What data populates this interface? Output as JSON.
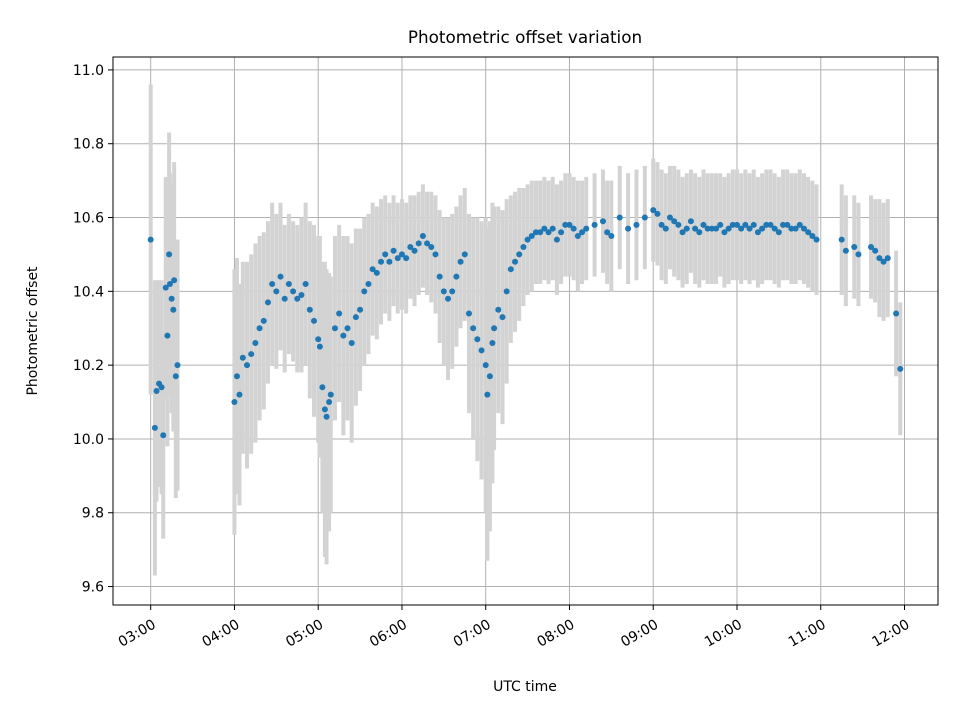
{
  "chart_data": {
    "type": "scatter",
    "title": "Photometric offset variation",
    "xlabel": "UTC time",
    "ylabel": "Photometric offset",
    "x_unit": "hours (UTC)",
    "xlim": [
      2.55,
      12.4
    ],
    "ylim": [
      9.55,
      11.035
    ],
    "x_ticks": [
      3,
      4,
      5,
      6,
      7,
      8,
      9,
      10,
      11,
      12
    ],
    "x_tick_labels": [
      "03:00",
      "04:00",
      "05:00",
      "06:00",
      "07:00",
      "08:00",
      "09:00",
      "10:00",
      "11:00",
      "12:00"
    ],
    "y_ticks": [
      9.6,
      9.8,
      10.0,
      10.2,
      10.4,
      10.6,
      10.8,
      11.0
    ],
    "y_tick_labels": [
      "9.6",
      "9.8",
      "10.0",
      "10.2",
      "10.4",
      "10.6",
      "10.8",
      "11.0"
    ],
    "grid": true,
    "legend": "none",
    "colors": {
      "points": "#1f77b4",
      "errorbars": "#d3d3d3",
      "grid": "#b0b0b0"
    },
    "series": [
      {
        "x": [
          3.0,
          3.05,
          3.07,
          3.1,
          3.13,
          3.15,
          3.18,
          3.2,
          3.22,
          3.23,
          3.25,
          3.27,
          3.28,
          3.3,
          3.32,
          4.0,
          4.03,
          4.06,
          4.1,
          4.15,
          4.2,
          4.25,
          4.3,
          4.35,
          4.4,
          4.45,
          4.5,
          4.55,
          4.6,
          4.65,
          4.7,
          4.75,
          4.8,
          4.85,
          4.9,
          4.95,
          5.0,
          5.02,
          5.05,
          5.08,
          5.1,
          5.13,
          5.15,
          5.2,
          5.25,
          5.3,
          5.35,
          5.4,
          5.45,
          5.5,
          5.55,
          5.6,
          5.65,
          5.7,
          5.75,
          5.8,
          5.85,
          5.9,
          5.95,
          6.0,
          6.05,
          6.1,
          6.15,
          6.2,
          6.25,
          6.3,
          6.35,
          6.4,
          6.45,
          6.5,
          6.55,
          6.6,
          6.65,
          6.7,
          6.75,
          6.8,
          6.85,
          6.9,
          6.95,
          7.0,
          7.02,
          7.05,
          7.08,
          7.1,
          7.15,
          7.2,
          7.25,
          7.3,
          7.35,
          7.4,
          7.45,
          7.5,
          7.55,
          7.6,
          7.65,
          7.7,
          7.75,
          7.8,
          7.85,
          7.9,
          7.95,
          8.0,
          8.05,
          8.1,
          8.15,
          8.2,
          8.3,
          8.4,
          8.45,
          8.5,
          8.6,
          8.7,
          8.8,
          8.9,
          9.0,
          9.05,
          9.1,
          9.15,
          9.2,
          9.25,
          9.3,
          9.35,
          9.4,
          9.45,
          9.5,
          9.55,
          9.6,
          9.65,
          9.7,
          9.75,
          9.8,
          9.85,
          9.9,
          9.95,
          10.0,
          10.05,
          10.1,
          10.15,
          10.2,
          10.25,
          10.3,
          10.35,
          10.4,
          10.45,
          10.5,
          10.55,
          10.6,
          10.65,
          10.7,
          10.75,
          10.8,
          10.85,
          10.9,
          10.95,
          11.25,
          11.3,
          11.4,
          11.45,
          11.6,
          11.65,
          11.7,
          11.75,
          11.8,
          11.9,
          11.95
        ],
        "y": [
          10.54,
          10.03,
          10.13,
          10.15,
          10.14,
          10.01,
          10.41,
          10.28,
          10.5,
          10.42,
          10.38,
          10.35,
          10.43,
          10.17,
          10.2,
          10.1,
          10.17,
          10.12,
          10.22,
          10.2,
          10.23,
          10.26,
          10.3,
          10.32,
          10.37,
          10.42,
          10.4,
          10.44,
          10.38,
          10.42,
          10.4,
          10.38,
          10.39,
          10.42,
          10.35,
          10.32,
          10.27,
          10.25,
          10.14,
          10.08,
          10.06,
          10.1,
          10.12,
          10.3,
          10.34,
          10.28,
          10.3,
          10.26,
          10.33,
          10.35,
          10.4,
          10.42,
          10.46,
          10.45,
          10.48,
          10.5,
          10.48,
          10.51,
          10.49,
          10.5,
          10.49,
          10.52,
          10.51,
          10.53,
          10.55,
          10.53,
          10.52,
          10.5,
          10.44,
          10.4,
          10.38,
          10.4,
          10.44,
          10.48,
          10.5,
          10.34,
          10.3,
          10.27,
          10.24,
          10.2,
          10.12,
          10.17,
          10.26,
          10.3,
          10.35,
          10.33,
          10.4,
          10.46,
          10.48,
          10.5,
          10.52,
          10.54,
          10.55,
          10.56,
          10.56,
          10.57,
          10.56,
          10.57,
          10.54,
          10.56,
          10.58,
          10.58,
          10.57,
          10.55,
          10.56,
          10.57,
          10.58,
          10.59,
          10.56,
          10.55,
          10.6,
          10.57,
          10.58,
          10.6,
          10.62,
          10.61,
          10.58,
          10.57,
          10.6,
          10.59,
          10.58,
          10.56,
          10.57,
          10.59,
          10.57,
          10.56,
          10.58,
          10.57,
          10.57,
          10.57,
          10.58,
          10.56,
          10.57,
          10.58,
          10.58,
          10.57,
          10.58,
          10.57,
          10.58,
          10.56,
          10.57,
          10.58,
          10.58,
          10.57,
          10.56,
          10.58,
          10.58,
          10.57,
          10.57,
          10.58,
          10.57,
          10.56,
          10.55,
          10.54,
          10.54,
          10.51,
          10.52,
          10.5,
          10.52,
          10.51,
          10.49,
          10.48,
          10.49,
          10.34,
          10.19
        ],
        "yerr": [
          0.42,
          0.4,
          0.3,
          0.28,
          0.29,
          0.28,
          0.3,
          0.3,
          0.33,
          0.3,
          0.31,
          0.33,
          0.32,
          0.33,
          0.34,
          0.36,
          0.32,
          0.3,
          0.26,
          0.28,
          0.27,
          0.27,
          0.25,
          0.24,
          0.22,
          0.22,
          0.21,
          0.2,
          0.2,
          0.19,
          0.19,
          0.2,
          0.21,
          0.22,
          0.24,
          0.26,
          0.28,
          0.3,
          0.34,
          0.4,
          0.4,
          0.35,
          0.32,
          0.25,
          0.24,
          0.27,
          0.25,
          0.27,
          0.24,
          0.22,
          0.2,
          0.19,
          0.18,
          0.18,
          0.17,
          0.16,
          0.16,
          0.15,
          0.15,
          0.15,
          0.15,
          0.14,
          0.15,
          0.14,
          0.14,
          0.14,
          0.15,
          0.16,
          0.18,
          0.2,
          0.22,
          0.21,
          0.19,
          0.18,
          0.18,
          0.27,
          0.3,
          0.33,
          0.35,
          0.4,
          0.45,
          0.42,
          0.38,
          0.33,
          0.28,
          0.29,
          0.25,
          0.2,
          0.19,
          0.18,
          0.16,
          0.15,
          0.15,
          0.14,
          0.14,
          0.14,
          0.14,
          0.14,
          0.15,
          0.14,
          0.14,
          0.14,
          0.14,
          0.15,
          0.14,
          0.14,
          0.14,
          0.14,
          0.14,
          0.15,
          0.14,
          0.15,
          0.15,
          0.14,
          0.14,
          0.14,
          0.15,
          0.15,
          0.14,
          0.15,
          0.15,
          0.15,
          0.15,
          0.14,
          0.15,
          0.15,
          0.15,
          0.15,
          0.15,
          0.15,
          0.14,
          0.15,
          0.15,
          0.15,
          0.15,
          0.15,
          0.15,
          0.15,
          0.15,
          0.15,
          0.15,
          0.15,
          0.15,
          0.15,
          0.15,
          0.15,
          0.15,
          0.15,
          0.15,
          0.15,
          0.15,
          0.15,
          0.15,
          0.15,
          0.15,
          0.15,
          0.14,
          0.14,
          0.14,
          0.14,
          0.16,
          0.16,
          0.16,
          0.17,
          0.18
        ]
      }
    ]
  }
}
